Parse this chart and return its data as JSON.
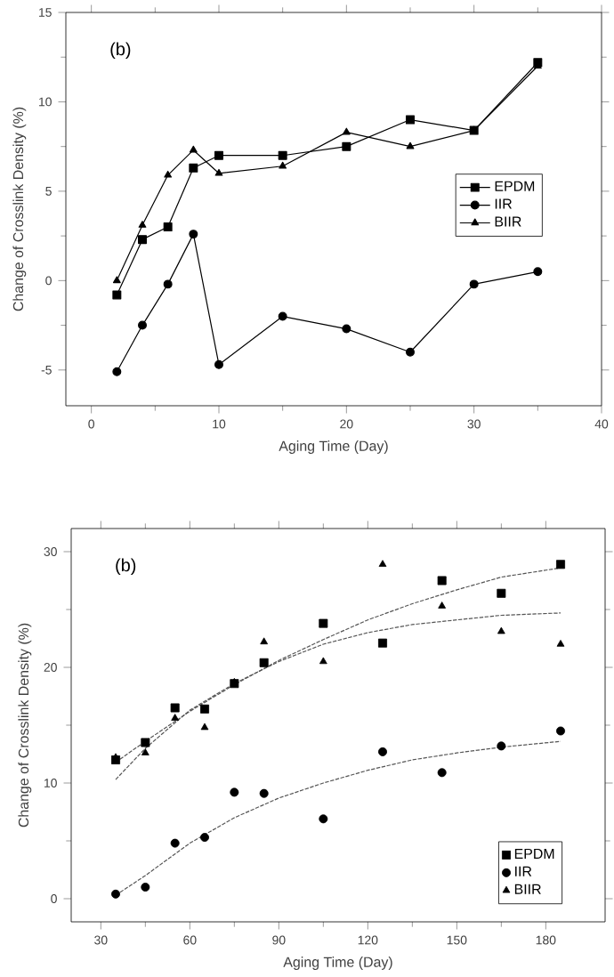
{
  "chart_data": [
    {
      "type": "line",
      "xlabel": "Aging Time (Day)",
      "ylabel": "Change of Crosslink Density (%)",
      "annotations": [
        "(b)"
      ],
      "x": [
        2,
        4,
        6,
        8,
        10,
        15,
        20,
        25,
        30,
        35
      ],
      "series": [
        {
          "name": "EPDM",
          "color": "#000000",
          "marker": "square",
          "values": [
            -0.8,
            2.3,
            3.0,
            6.3,
            7.0,
            7.0,
            7.5,
            9.0,
            8.4,
            12.2
          ]
        },
        {
          "name": "IIR",
          "color": "#000000",
          "marker": "circle",
          "values": [
            -5.1,
            -2.5,
            -0.2,
            2.6,
            -4.7,
            -2.0,
            -2.7,
            -4.0,
            -0.2,
            0.5
          ]
        },
        {
          "name": "BIIR",
          "color": "#000000",
          "marker": "triangle",
          "values": [
            0.0,
            3.1,
            5.9,
            7.3,
            6.0,
            6.4,
            8.3,
            7.5,
            8.4,
            12.0
          ]
        }
      ],
      "xlim": [
        -2,
        40
      ],
      "ylim": [
        -7,
        15
      ],
      "xticks": [
        0,
        10,
        20,
        30,
        40
      ],
      "yticks": [
        -5,
        0,
        5,
        10,
        15
      ],
      "legend": "right",
      "line_style": "solid"
    },
    {
      "type": "scatter",
      "xlabel": "Aging Time (Day)",
      "ylabel": "Change of Crosslink Density (%)",
      "annotations": [
        "(b)"
      ],
      "x": [
        35,
        45,
        55,
        65,
        75,
        85,
        105,
        125,
        145,
        165,
        185
      ],
      "series": [
        {
          "name": "EPDM",
          "color": "#000000",
          "marker": "square",
          "values": [
            12.0,
            13.5,
            16.5,
            16.4,
            18.6,
            20.4,
            23.8,
            22.1,
            27.5,
            26.4,
            28.9
          ]
        },
        {
          "name": "IIR",
          "color": "#000000",
          "marker": "circle",
          "values": [
            0.4,
            1.0,
            4.8,
            5.3,
            9.2,
            9.1,
            6.9,
            12.7,
            10.9,
            13.2,
            14.5
          ]
        },
        {
          "name": "BIIR",
          "color": "#000000",
          "marker": "triangle",
          "values": [
            12.2,
            12.6,
            15.6,
            14.8,
            18.7,
            22.2,
            20.5,
            28.9,
            25.3,
            23.1,
            22.0
          ]
        },
        {
          "type": "line",
          "color": "#555555",
          "marker": "none",
          "line_style": "dashed",
          "x": [
            35,
            45,
            60,
            75,
            90,
            105,
            120,
            135,
            150,
            165,
            185
          ],
          "values": [
            11.8,
            13.6,
            16.2,
            18.5,
            20.6,
            22.4,
            24.1,
            25.5,
            26.7,
            27.8,
            28.6
          ]
        },
        {
          "type": "line",
          "color": "#555555",
          "marker": "none",
          "line_style": "dashed",
          "x": [
            35,
            45,
            60,
            75,
            90,
            105,
            120,
            135,
            150,
            165,
            185
          ],
          "values": [
            0.3,
            2.0,
            4.8,
            7.0,
            8.7,
            10.0,
            11.1,
            12.0,
            12.6,
            13.1,
            13.6
          ]
        },
        {
          "type": "line",
          "color": "#555555",
          "marker": "none",
          "line_style": "dashed",
          "x": [
            35,
            45,
            60,
            75,
            90,
            105,
            120,
            135,
            150,
            165,
            185
          ],
          "values": [
            10.3,
            13.0,
            16.3,
            18.6,
            20.5,
            22.0,
            23.0,
            23.7,
            24.1,
            24.5,
            24.7
          ]
        }
      ],
      "xlim": [
        20,
        200
      ],
      "ylim": [
        -2,
        32
      ],
      "xticks": [
        30,
        60,
        90,
        120,
        150,
        180
      ],
      "yticks": [
        0,
        10,
        20,
        30
      ],
      "legend": "bottom right"
    }
  ]
}
